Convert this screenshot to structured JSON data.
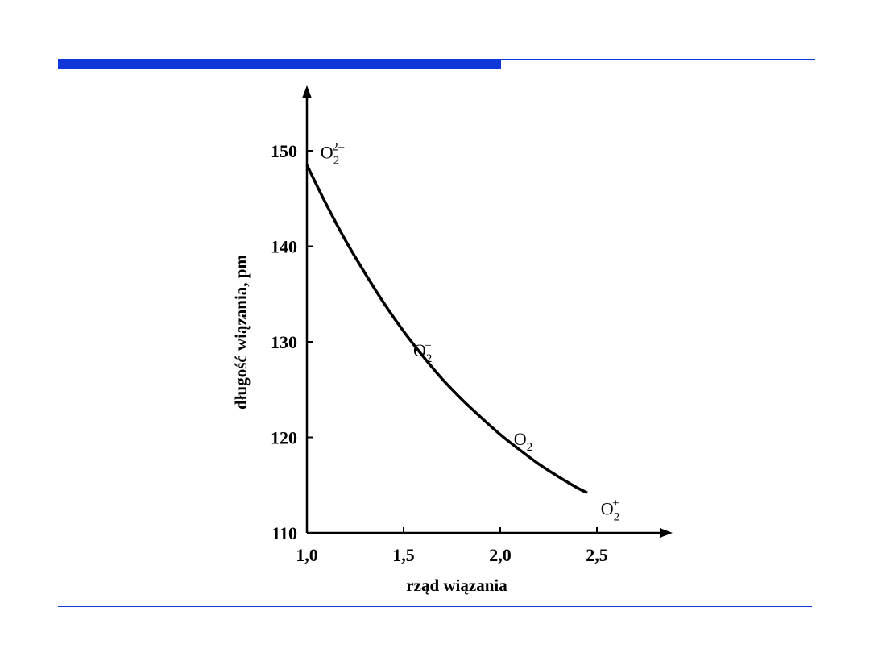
{
  "colors": {
    "rule": "#1038d8",
    "ink": "#000000",
    "background": "#ffffff"
  },
  "chart_data": {
    "type": "line",
    "title": "",
    "xlabel": "rząd wiązania",
    "ylabel": "długość wiązania, pm",
    "xlim": [
      1.0,
      2.85
    ],
    "ylim": [
      110,
      156
    ],
    "x_ticks": [
      {
        "value": 1.0,
        "label": "1,0"
      },
      {
        "value": 1.5,
        "label": "1,5"
      },
      {
        "value": 2.0,
        "label": "2,0"
      },
      {
        "value": 2.5,
        "label": "2,5"
      }
    ],
    "y_ticks": [
      {
        "value": 110,
        "label": "110"
      },
      {
        "value": 120,
        "label": "120"
      },
      {
        "value": 130,
        "label": "130"
      },
      {
        "value": 140,
        "label": "140"
      },
      {
        "value": 150,
        "label": "150"
      }
    ],
    "grid": false,
    "series": [
      {
        "x": [
          1.0,
          1.1,
          1.2,
          1.3,
          1.4,
          1.5,
          1.6,
          1.7,
          1.8,
          1.9,
          2.0,
          2.1,
          2.2,
          2.3,
          2.4,
          2.45
        ],
        "y": [
          148.5,
          144.4,
          140.6,
          137.2,
          134.0,
          131.1,
          128.5,
          126.1,
          124.0,
          122.1,
          120.3,
          118.7,
          117.2,
          115.9,
          114.7,
          114.2
        ]
      }
    ],
    "annotations": [
      {
        "base": "O",
        "sub": "2",
        "sup": "2–",
        "x": 1.07,
        "y": 149.2
      },
      {
        "base": "O",
        "sub": "2",
        "sup": "–",
        "x": 1.55,
        "y": 128.5
      },
      {
        "base": "O",
        "sub": "2",
        "sup": "",
        "x": 2.07,
        "y": 119.2
      },
      {
        "base": "O",
        "sub": "2",
        "sup": "+",
        "x": 2.52,
        "y": 111.9
      }
    ]
  }
}
